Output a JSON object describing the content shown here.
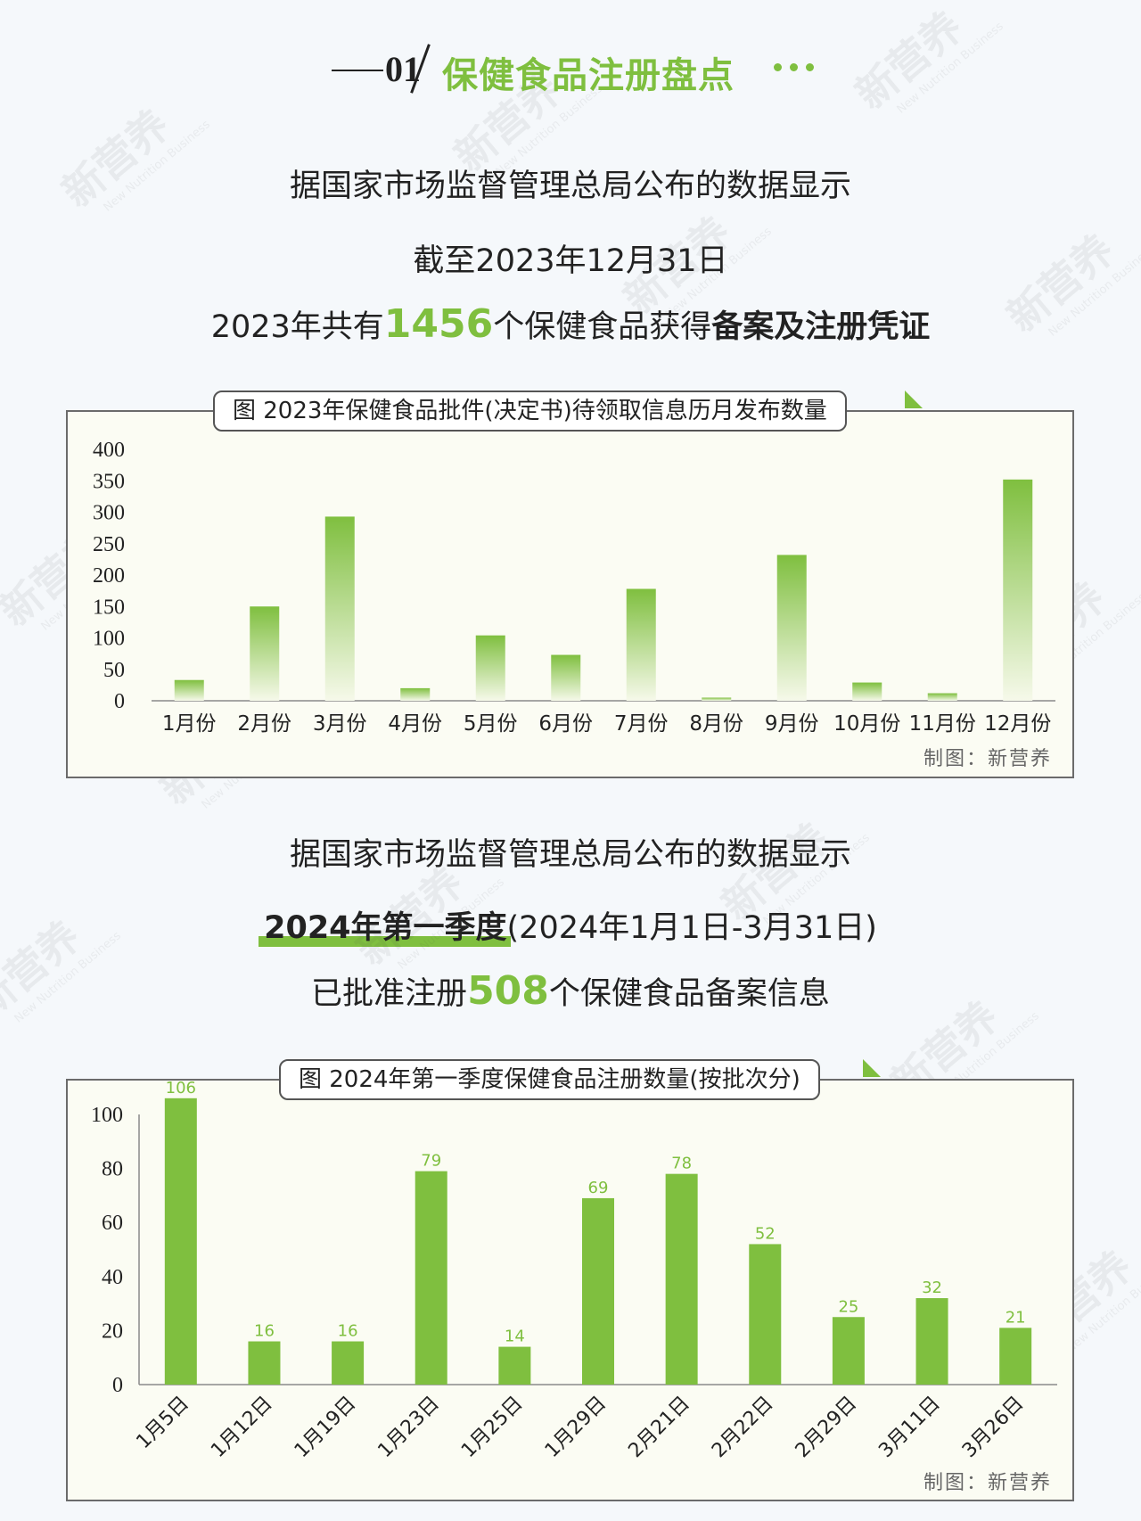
{
  "section": {
    "number": "01",
    "title": "保健食品注册盘点"
  },
  "intro1": {
    "line1": "据国家市场监督管理总局公布的数据显示",
    "line2": "截至2023年12月31日",
    "line3_pre": "2023年共有",
    "line3_num": "1456",
    "line3_mid": "个保健食品获得",
    "line3_bold": "备案及注册凭证"
  },
  "intro2": {
    "line1": "据国家市场监督管理总局公布的数据显示",
    "line2_marked": "2024年第一季度",
    "line2_rest": "(2024年1月1日-3月31日)",
    "line3_pre": "已批准注册",
    "line3_num": "508",
    "line3_post": "个保健食品备案信息"
  },
  "watermark": {
    "brand": "新营养",
    "tagline": "New Nutrition Business"
  },
  "colors": {
    "accent": "#7fbf3f",
    "bar_top": "#7fbf3f",
    "bar_bottom": "#f6f9ea",
    "axis": "#8a8a8a"
  },
  "chart_data": [
    {
      "type": "bar",
      "title": "图  2023年保健食品批件(决定书)待领取信息历月发布数量",
      "credit": "制图：新营养",
      "categories": [
        "1月份",
        "2月份",
        "3月份",
        "4月份",
        "5月份",
        "6月份",
        "7月份",
        "8月份",
        "9月份",
        "10月份",
        "11月份",
        "12月份"
      ],
      "values": [
        33,
        150,
        293,
        20,
        104,
        73,
        178,
        5,
        232,
        29,
        12,
        352
      ],
      "yticks": [
        0,
        50,
        100,
        150,
        200,
        250,
        300,
        350,
        400
      ],
      "ylim": [
        0,
        400
      ],
      "bar_style": "gradient"
    },
    {
      "type": "bar",
      "title": "图  2024年第一季度保健食品注册数量(按批次分)",
      "credit": "制图：新营养",
      "categories": [
        "1月5日",
        "1月12日",
        "1月19日",
        "1月23日",
        "1月25日",
        "1月29日",
        "2月21日",
        "2月22日",
        "2月29日",
        "3月11日",
        "3月26日"
      ],
      "values": [
        106,
        16,
        16,
        79,
        14,
        69,
        78,
        52,
        25,
        32,
        21
      ],
      "data_labels": [
        "106",
        "16",
        "16",
        "79",
        "14",
        "69",
        "78",
        "52",
        "25",
        "32",
        "21"
      ],
      "yticks": [
        0,
        20,
        40,
        60,
        80,
        100
      ],
      "ylim": [
        0,
        100
      ],
      "bar_style": "solid"
    }
  ]
}
